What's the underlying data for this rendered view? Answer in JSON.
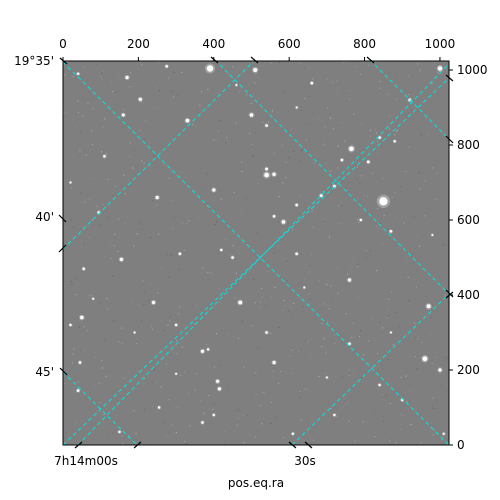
{
  "chart_data": {
    "type": "heatmap",
    "title": "",
    "xlabel": "pos.eq.ra",
    "ylabel": "",
    "pixel_axes": {
      "xlim": [
        0,
        1024
      ],
      "ylim": [
        0,
        1024
      ],
      "bottom_ticks": [
        0,
        200,
        400,
        600,
        800,
        1000
      ],
      "right_ticks": [
        0,
        200,
        400,
        600,
        800,
        1000
      ]
    },
    "world_axes": {
      "dec_labels": [
        "19°35'",
        "40'",
        "45'"
      ],
      "ra_labels": [
        "7h14m00s",
        "30s"
      ]
    },
    "grid": true,
    "grid_color": "#00e5e5",
    "image_background": "#7f7f7f",
    "stars": [
      [
        390,
        1004,
        3.2
      ],
      [
        510,
        1000,
        2.0
      ],
      [
        1000,
        1004,
        2.2
      ],
      [
        170,
        980,
        1.6
      ],
      [
        275,
        1010,
        1.3
      ],
      [
        660,
        965,
        1.3
      ],
      [
        920,
        920,
        1.4
      ],
      [
        40,
        990,
        1.2
      ],
      [
        205,
        922,
        1.6
      ],
      [
        330,
        865,
        1.8
      ],
      [
        500,
        880,
        1.8
      ],
      [
        540,
        852,
        1.3
      ],
      [
        160,
        880,
        1.5
      ],
      [
        840,
        820,
        1.3
      ],
      [
        765,
        790,
        2.3
      ],
      [
        880,
        810,
        1.2
      ],
      [
        110,
        770,
        1.3
      ],
      [
        740,
        760,
        1.3
      ],
      [
        810,
        755,
        1.4
      ],
      [
        540,
        720,
        2.3
      ],
      [
        560,
        722,
        1.7
      ],
      [
        540,
        736,
        1.4
      ],
      [
        400,
        680,
        1.6
      ],
      [
        720,
        690,
        1.4
      ],
      [
        685,
        665,
        1.4
      ],
      [
        850,
        650,
        4.2
      ],
      [
        250,
        660,
        1.6
      ],
      [
        620,
        640,
        1.3
      ],
      [
        95,
        620,
        1.3
      ],
      [
        585,
        595,
        1.8
      ],
      [
        560,
        610,
        1.3
      ],
      [
        790,
        600,
        1.2
      ],
      [
        870,
        570,
        1.3
      ],
      [
        155,
        495,
        1.7
      ],
      [
        310,
        510,
        1.3
      ],
      [
        450,
        500,
        1.3
      ],
      [
        620,
        510,
        1.3
      ],
      [
        420,
        520,
        1.2
      ],
      [
        55,
        470,
        1.3
      ],
      [
        760,
        440,
        1.6
      ],
      [
        240,
        380,
        1.6
      ],
      [
        470,
        380,
        1.9
      ],
      [
        970,
        370,
        2.0
      ],
      [
        50,
        340,
        1.8
      ],
      [
        20,
        320,
        1.2
      ],
      [
        300,
        320,
        1.2
      ],
      [
        540,
        300,
        1.3
      ],
      [
        760,
        270,
        1.3
      ],
      [
        370,
        250,
        1.6
      ],
      [
        385,
        255,
        1.2
      ],
      [
        560,
        220,
        1.6
      ],
      [
        960,
        230,
        2.4
      ],
      [
        1000,
        200,
        1.6
      ],
      [
        45,
        220,
        1.3
      ],
      [
        410,
        170,
        1.6
      ],
      [
        415,
        150,
        1.6
      ],
      [
        840,
        160,
        1.2
      ],
      [
        40,
        145,
        1.3
      ],
      [
        255,
        100,
        1.2
      ],
      [
        370,
        60,
        1.3
      ],
      [
        400,
        80,
        1.2
      ],
      [
        720,
        80,
        1.2
      ],
      [
        900,
        120,
        1.2
      ],
      [
        150,
        35,
        1.2
      ],
      [
        610,
        30,
        1.2
      ],
      [
        1010,
        30,
        1.1
      ],
      [
        80,
        390,
        1.0
      ],
      [
        640,
        420,
        1.0
      ],
      [
        190,
        300,
        1.0
      ],
      [
        870,
        300,
        1.0
      ],
      [
        300,
        190,
        1.0
      ],
      [
        700,
        180,
        1.0
      ],
      [
        980,
        560,
        1.0
      ],
      [
        20,
        700,
        1.0
      ],
      [
        460,
        960,
        1.0
      ],
      [
        620,
        900,
        1.0
      ]
    ]
  }
}
